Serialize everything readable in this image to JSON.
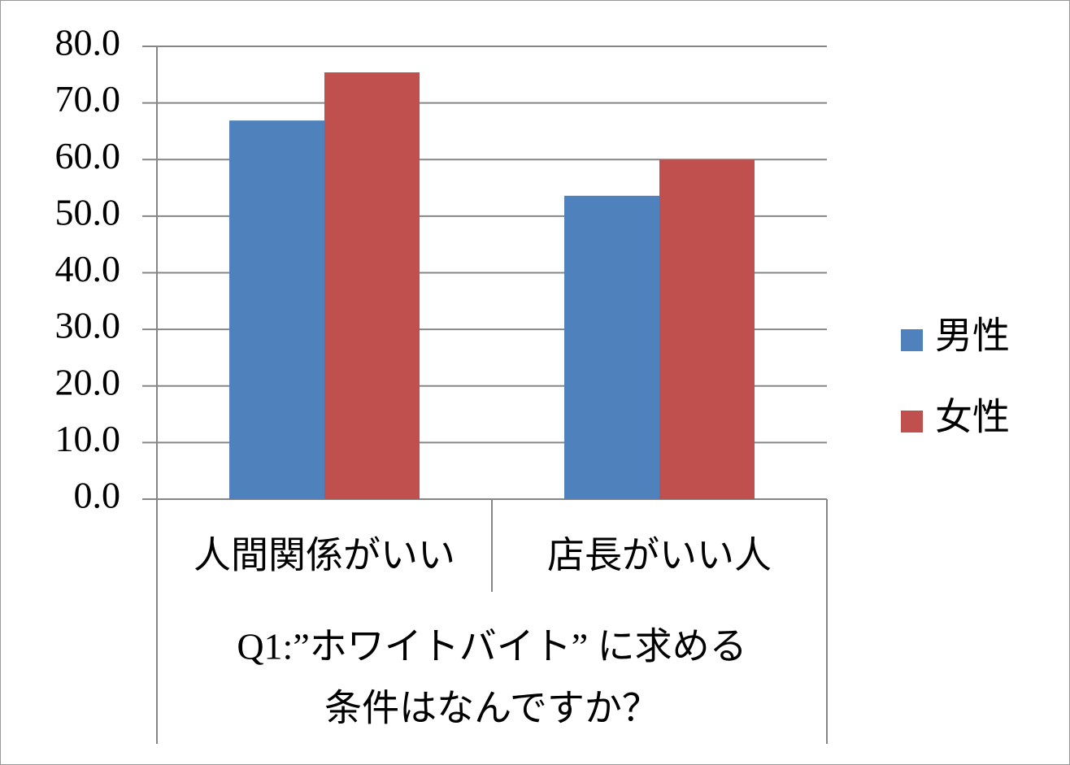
{
  "chart_data": {
    "type": "bar",
    "categories": [
      "人間関係がいい",
      "店長がいい人"
    ],
    "x_label": [
      "Q1:”ホワイトバイト” に求める",
      "条件はなんですか？"
    ],
    "series": [
      {
        "name": "男性",
        "color": "#4f81bd",
        "values": [
          66.9,
          53.6
        ]
      },
      {
        "name": "女性",
        "color": "#c0504d",
        "values": [
          75.4,
          60.0
        ]
      }
    ],
    "ylim": [
      0,
      80
    ],
    "yticks": [
      {
        "value": 0,
        "label": "0.0"
      },
      {
        "value": 10,
        "label": "10.0"
      },
      {
        "value": 20,
        "label": "20.0"
      },
      {
        "value": 30,
        "label": "30.0"
      },
      {
        "value": 40,
        "label": "40.0"
      },
      {
        "value": 50,
        "label": "50.0"
      },
      {
        "value": 60,
        "label": "60.0"
      },
      {
        "value": 70,
        "label": "70.0"
      },
      {
        "value": 80,
        "label": "80.0"
      }
    ],
    "grid": true,
    "legend": "right"
  }
}
